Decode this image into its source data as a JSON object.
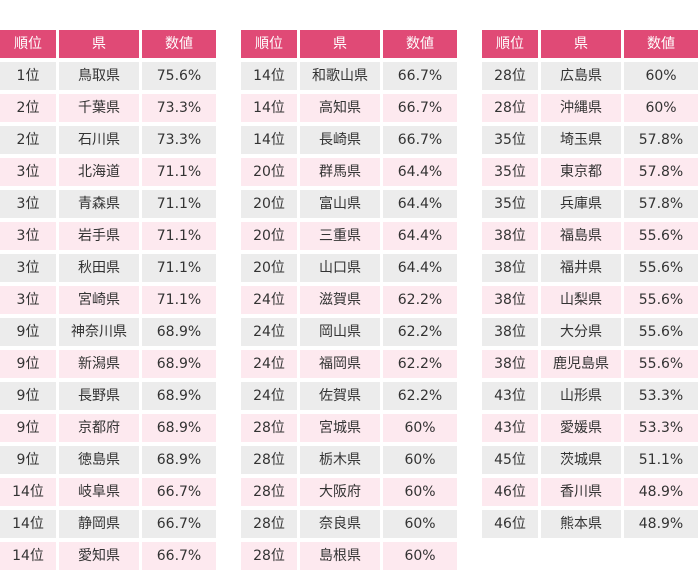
{
  "colors": {
    "header_bg": "#e04a76",
    "header_text": "#ffffff",
    "row_gray": "#ececec",
    "row_pink": "#fde9ef",
    "text": "#333333"
  },
  "headers": [
    "順位",
    "県",
    "数値"
  ],
  "tables": [
    {
      "rows": [
        [
          "1位",
          "鳥取県",
          "75.6%"
        ],
        [
          "2位",
          "千葉県",
          "73.3%"
        ],
        [
          "2位",
          "石川県",
          "73.3%"
        ],
        [
          "3位",
          "北海道",
          "71.1%"
        ],
        [
          "3位",
          "青森県",
          "71.1%"
        ],
        [
          "3位",
          "岩手県",
          "71.1%"
        ],
        [
          "3位",
          "秋田県",
          "71.1%"
        ],
        [
          "3位",
          "宮崎県",
          "71.1%"
        ],
        [
          "9位",
          "神奈川県",
          "68.9%"
        ],
        [
          "9位",
          "新潟県",
          "68.9%"
        ],
        [
          "9位",
          "長野県",
          "68.9%"
        ],
        [
          "9位",
          "京都府",
          "68.9%"
        ],
        [
          "9位",
          "徳島県",
          "68.9%"
        ],
        [
          "14位",
          "岐阜県",
          "66.7%"
        ],
        [
          "14位",
          "静岡県",
          "66.7%"
        ],
        [
          "14位",
          "愛知県",
          "66.7%"
        ]
      ]
    },
    {
      "rows": [
        [
          "14位",
          "和歌山県",
          "66.7%"
        ],
        [
          "14位",
          "高知県",
          "66.7%"
        ],
        [
          "14位",
          "長崎県",
          "66.7%"
        ],
        [
          "20位",
          "群馬県",
          "64.4%"
        ],
        [
          "20位",
          "富山県",
          "64.4%"
        ],
        [
          "20位",
          "三重県",
          "64.4%"
        ],
        [
          "20位",
          "山口県",
          "64.4%"
        ],
        [
          "24位",
          "滋賀県",
          "62.2%"
        ],
        [
          "24位",
          "岡山県",
          "62.2%"
        ],
        [
          "24位",
          "福岡県",
          "62.2%"
        ],
        [
          "24位",
          "佐賀県",
          "62.2%"
        ],
        [
          "28位",
          "宮城県",
          "60%"
        ],
        [
          "28位",
          "栃木県",
          "60%"
        ],
        [
          "28位",
          "大阪府",
          "60%"
        ],
        [
          "28位",
          "奈良県",
          "60%"
        ],
        [
          "28位",
          "島根県",
          "60%"
        ]
      ]
    },
    {
      "rows": [
        [
          "28位",
          "広島県",
          "60%"
        ],
        [
          "28位",
          "沖縄県",
          "60%"
        ],
        [
          "35位",
          "埼玉県",
          "57.8%"
        ],
        [
          "35位",
          "東京都",
          "57.8%"
        ],
        [
          "35位",
          "兵庫県",
          "57.8%"
        ],
        [
          "38位",
          "福島県",
          "55.6%"
        ],
        [
          "38位",
          "福井県",
          "55.6%"
        ],
        [
          "38位",
          "山梨県",
          "55.6%"
        ],
        [
          "38位",
          "大分県",
          "55.6%"
        ],
        [
          "38位",
          "鹿児島県",
          "55.6%"
        ],
        [
          "43位",
          "山形県",
          "53.3%"
        ],
        [
          "43位",
          "愛媛県",
          "53.3%"
        ],
        [
          "45位",
          "茨城県",
          "51.1%"
        ],
        [
          "46位",
          "香川県",
          "48.9%"
        ],
        [
          "46位",
          "熊本県",
          "48.9%"
        ]
      ]
    }
  ]
}
